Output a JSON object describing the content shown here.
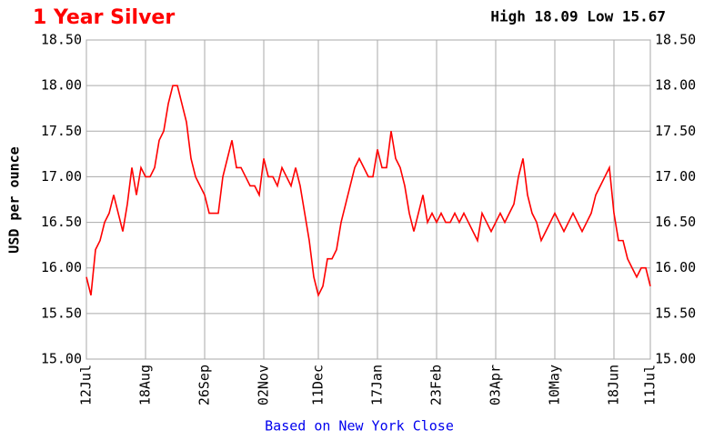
{
  "chart_data": {
    "type": "line",
    "title": "1 Year Silver",
    "subtitle": "High 18.09 Low 15.67",
    "y_label": "USD per ounce",
    "footer": "Based on New York Close",
    "categories": [
      "12Jul",
      null,
      null,
      null,
      null,
      null,
      null,
      null,
      null,
      null,
      null,
      null,
      null,
      "18Aug",
      null,
      null,
      null,
      null,
      null,
      null,
      null,
      null,
      null,
      null,
      null,
      null,
      "26Sep",
      null,
      null,
      null,
      null,
      null,
      null,
      null,
      null,
      null,
      null,
      null,
      null,
      "02Nov",
      null,
      null,
      null,
      null,
      null,
      null,
      null,
      null,
      null,
      null,
      null,
      "11Dec",
      null,
      null,
      null,
      null,
      null,
      null,
      null,
      null,
      null,
      null,
      null,
      null,
      "17Jan",
      null,
      null,
      null,
      null,
      null,
      null,
      null,
      null,
      null,
      null,
      null,
      null,
      "23Feb",
      null,
      null,
      null,
      null,
      null,
      null,
      null,
      null,
      null,
      null,
      null,
      null,
      "03Apr",
      null,
      null,
      null,
      null,
      null,
      null,
      null,
      null,
      null,
      null,
      null,
      null,
      "10May",
      null,
      null,
      null,
      null,
      null,
      null,
      null,
      null,
      null,
      null,
      null,
      null,
      "18Jun",
      null,
      null,
      null,
      null,
      null,
      null,
      null,
      "11Jul"
    ],
    "series": [
      {
        "color": "#ff0000",
        "values": [
          15.9,
          15.7,
          16.2,
          16.3,
          16.5,
          16.6,
          16.8,
          16.6,
          16.4,
          16.7,
          17.1,
          16.8,
          17.1,
          17.0,
          17.0,
          17.1,
          17.4,
          17.5,
          17.8,
          18.0,
          18.0,
          17.8,
          17.6,
          17.2,
          17.0,
          16.9,
          16.8,
          16.6,
          16.6,
          16.6,
          17.0,
          17.2,
          17.4,
          17.1,
          17.1,
          17.0,
          16.9,
          16.9,
          16.8,
          17.2,
          17.0,
          17.0,
          16.9,
          17.1,
          17.0,
          16.9,
          17.1,
          16.9,
          16.6,
          16.3,
          15.9,
          15.7,
          15.8,
          16.1,
          16.1,
          16.2,
          16.5,
          16.7,
          16.9,
          17.1,
          17.2,
          17.1,
          17.0,
          17.0,
          17.3,
          17.1,
          17.1,
          17.5,
          17.2,
          17.1,
          16.9,
          16.6,
          16.4,
          16.6,
          16.8,
          16.5,
          16.6,
          16.5,
          16.6,
          16.5,
          16.5,
          16.6,
          16.5,
          16.6,
          16.5,
          16.4,
          16.3,
          16.6,
          16.5,
          16.4,
          16.5,
          16.6,
          16.5,
          16.6,
          16.7,
          17.0,
          17.2,
          16.8,
          16.6,
          16.5,
          16.3,
          16.4,
          16.5,
          16.6,
          16.5,
          16.4,
          16.5,
          16.6,
          16.5,
          16.4,
          16.5,
          16.6,
          16.8,
          16.9,
          17.0,
          17.1,
          16.6,
          16.3,
          16.3,
          16.1,
          16.0,
          15.9,
          16.0,
          16.0,
          15.8
        ]
      }
    ],
    "ylim": [
      15,
      18.5
    ],
    "yticks": [
      {
        "value": 15,
        "label": "15.00"
      },
      {
        "value": 15.5,
        "label": "15.50"
      },
      {
        "value": 16,
        "label": "16.00"
      },
      {
        "value": 16.5,
        "label": "16.50"
      },
      {
        "value": 17,
        "label": "17.00"
      },
      {
        "value": 17.5,
        "label": "17.50"
      },
      {
        "value": 18,
        "label": "18.00"
      },
      {
        "value": 18.5,
        "label": "18.50"
      }
    ],
    "grid": true
  }
}
